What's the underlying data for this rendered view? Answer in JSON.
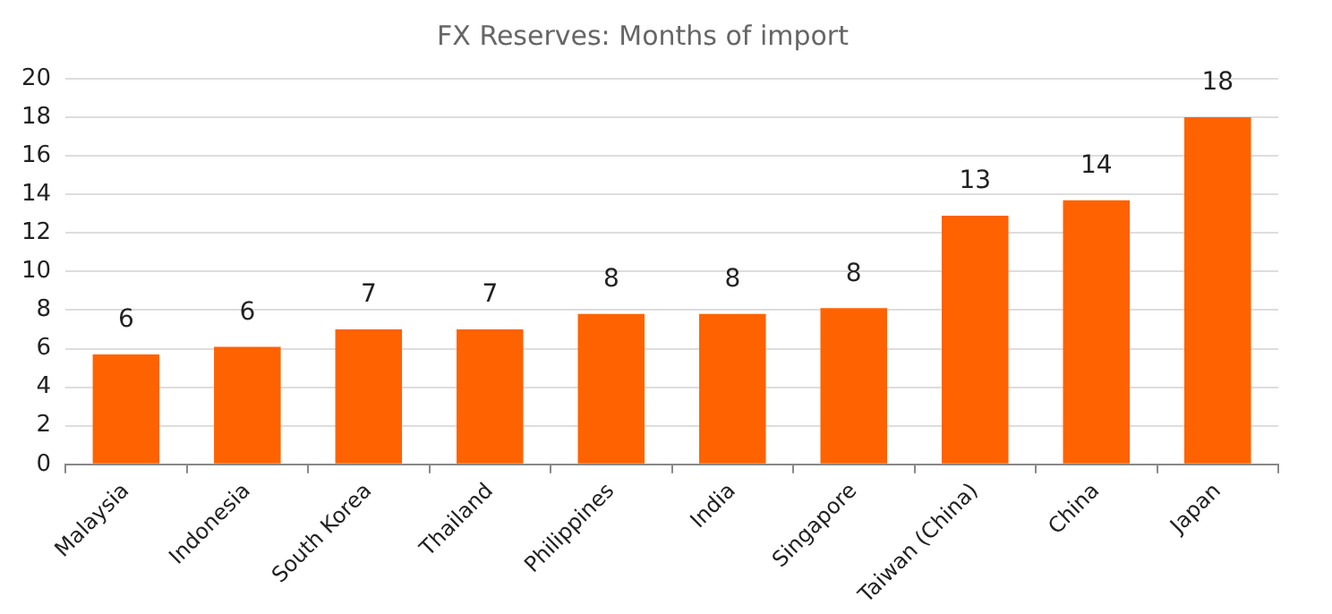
{
  "chart_data": {
    "type": "bar",
    "title": "FX Reserves: Months of import",
    "categories": [
      "Malaysia",
      "Indonesia",
      "South Korea",
      "Thailand",
      "Philippines",
      "India",
      "Singapore",
      "Taiwan (China)",
      "China",
      "Japan"
    ],
    "values": [
      5.7,
      6.1,
      7.0,
      7.0,
      7.8,
      7.8,
      8.1,
      12.9,
      13.7,
      18.0
    ],
    "value_labels": [
      "6",
      "6",
      "7",
      "7",
      "8",
      "8",
      "8",
      "13",
      "14",
      "18"
    ],
    "color": "#ff6200",
    "ylim": [
      0,
      20
    ],
    "yticks": [
      0,
      2,
      4,
      6,
      8,
      10,
      12,
      14,
      16,
      18,
      20
    ],
    "grid": "y"
  }
}
